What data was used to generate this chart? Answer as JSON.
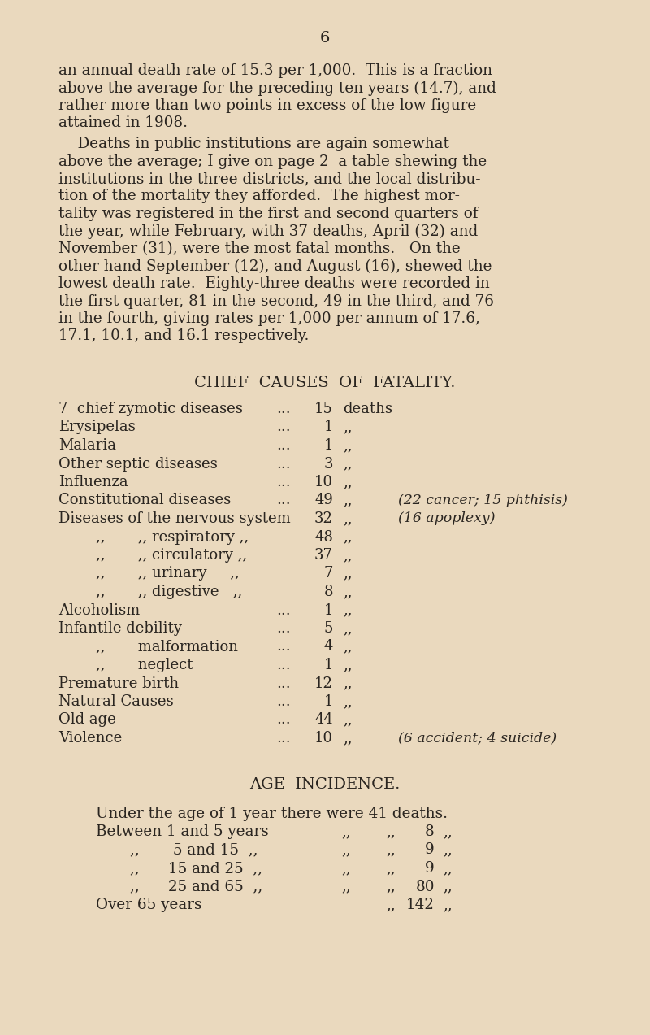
{
  "background_color": "#EAD9BE",
  "text_color": "#2a2520",
  "page_number": "6",
  "para1_lines": [
    "an annual death rate of 15.3 per 1,000.  This is a fraction",
    "above the average for the preceding ten years (14.7), and",
    "rather more than two points in excess of the low figure",
    "attained in 1908."
  ],
  "para2_lines": [
    "    Deaths in public institutions are again somewhat",
    "above the average; I give on page 2  a table shewing the",
    "institutions in the three districts, and the local distribu-",
    "tion of the mortality they afforded.  The highest mor-",
    "tality was registered in the first and second quarters of",
    "the year, while February, with 37 deaths, April (32) and",
    "November (31), were the most fatal months.   On the",
    "other hand September (12), and August (16), shewed the",
    "lowest death rate.  Eighty-three deaths were recorded in",
    "the first quarter, 81 in the second, 49 in the third, and 76",
    "in the fourth, giving rates per 1,000 per annum of 17.6,",
    "17.1, 10.1, and 16.1 respectively."
  ],
  "section1_title": "CHIEF  CAUSES  OF  FATALITY.",
  "causes": [
    {
      "label": "7  chief zymotic diseases",
      "dots": "...",
      "num": "15",
      "unit": "deaths",
      "note": "",
      "indent": false
    },
    {
      "label": "Erysipelas",
      "dots": "...",
      "num": "1",
      "unit": ",,",
      "note": "",
      "indent": false
    },
    {
      "label": "Malaria",
      "dots": "...",
      "num": "1",
      "unit": ",,",
      "note": "",
      "indent": false
    },
    {
      "label": "Other septic diseases",
      "dots": "...",
      "num": "3",
      "unit": ",,",
      "note": "",
      "indent": false
    },
    {
      "label": "Influenza",
      "dots": "...",
      "num": "10",
      "unit": ",,",
      "note": "",
      "indent": false
    },
    {
      "label": "Constitutional diseases",
      "dots": "...",
      "num": "49",
      "unit": ",,",
      "note": "(22 cancer; 15 phthisis)",
      "indent": false
    },
    {
      "label": "Diseases of the nervous system",
      "dots": "",
      "num": "32",
      "unit": ",,",
      "note": "(16 apoplexy)",
      "indent": false
    },
    {
      "label": ",,       ,, respiratory ,,",
      "dots": "",
      "num": "48",
      "unit": ",,",
      "note": "",
      "indent": true
    },
    {
      "label": ",,       ,, circulatory ,,",
      "dots": "",
      "num": "37",
      "unit": ",,",
      "note": "",
      "indent": true
    },
    {
      "label": ",,       ,, urinary     ,,",
      "dots": "",
      "num": "7",
      "unit": ",,",
      "note": "",
      "indent": true
    },
    {
      "label": ",,       ,, digestive   ,,",
      "dots": "",
      "num": "8",
      "unit": ",,",
      "note": "",
      "indent": true
    },
    {
      "label": "Alcoholism",
      "dots": "...",
      "num": "1",
      "unit": ",,",
      "note": "",
      "indent": false
    },
    {
      "label": "Infantile debility",
      "dots": "...",
      "num": "5",
      "unit": ",,",
      "note": "",
      "indent": false
    },
    {
      "label": ",,       malformation",
      "dots": "...",
      "num": "4",
      "unit": ",,",
      "note": "",
      "indent": true
    },
    {
      "label": ",,       neglect",
      "dots": "...",
      "num": "1",
      "unit": ",,",
      "note": "",
      "indent": true
    },
    {
      "label": "Premature birth",
      "dots": "...",
      "num": "12",
      "unit": ",,",
      "note": "",
      "indent": false
    },
    {
      "label": "Natural Causes",
      "dots": "...",
      "num": "1",
      "unit": ",,",
      "note": "",
      "indent": false
    },
    {
      "label": "Old age",
      "dots": "...",
      "num": "44",
      "unit": ",,",
      "note": "",
      "indent": false
    },
    {
      "label": "Violence",
      "dots": "...",
      "num": "10",
      "unit": ",,",
      "note": "(6 accident; 4 suicide)",
      "indent": false
    }
  ],
  "section2_title": "AGE  INCIDENCE.",
  "age_rows": [
    {
      "label": "Under the age of 1 year there were 41 deaths.",
      "mid1": "",
      "mid2": "",
      "num": "",
      "unit": "",
      "indent": false
    },
    {
      "label": "Between 1 and 5 years",
      "mid1": ",,",
      "mid2": ",,",
      "num": "8",
      "unit": ",,",
      "indent": false
    },
    {
      "label": ",,       5 and 15  ,,",
      "mid1": ",,",
      "mid2": ",,",
      "num": "9",
      "unit": ",,",
      "indent": true
    },
    {
      "label": ",,      15 and 25  ,,",
      "mid1": ",,",
      "mid2": ",,",
      "num": "9",
      "unit": ",,",
      "indent": true
    },
    {
      "label": ",,      25 and 65  ,,",
      "mid1": ",,",
      "mid2": ",,",
      "num": "80",
      "unit": ",,",
      "indent": true
    },
    {
      "label": "Over 65 years",
      "mid1": "",
      "mid2": ",,",
      "num": "142",
      "unit": ",,",
      "indent": false
    }
  ]
}
